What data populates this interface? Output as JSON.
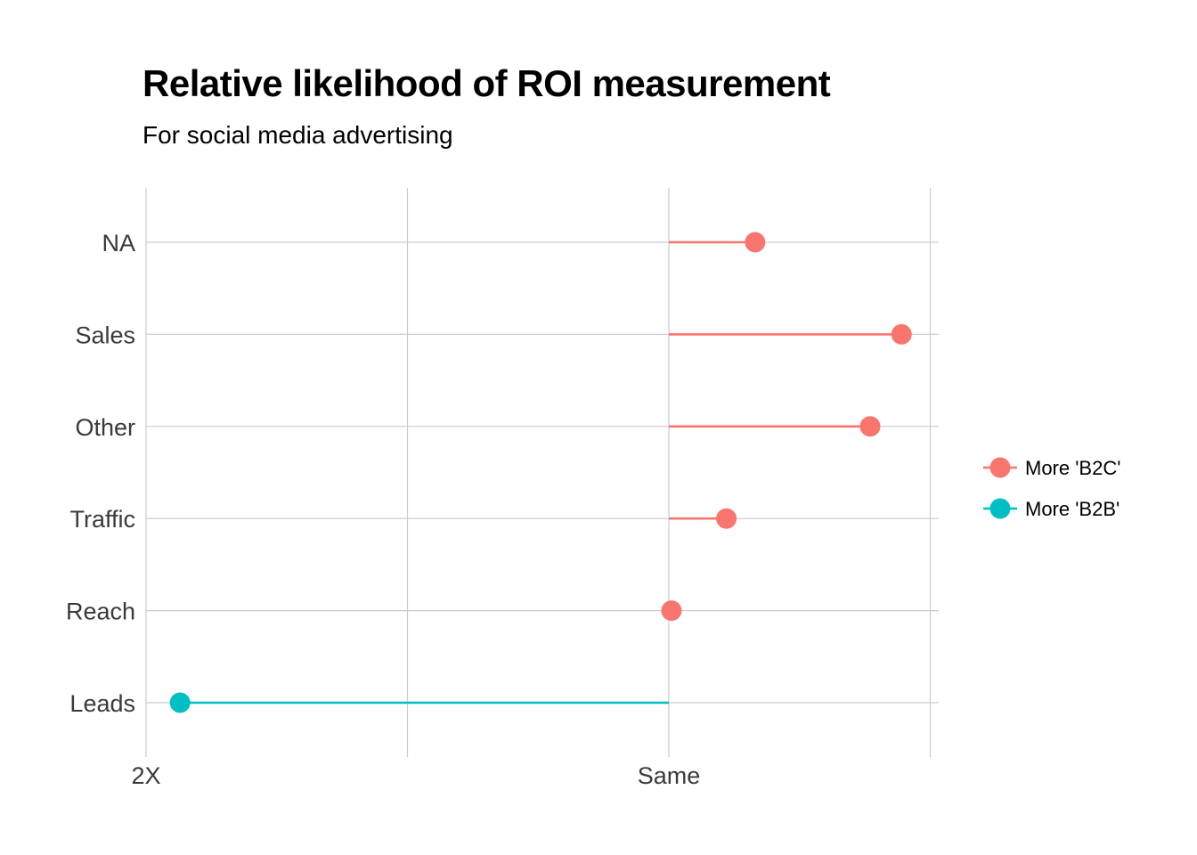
{
  "title": "Relative likelihood of ROI measurement",
  "subtitle": "For social media advertising",
  "chart_data": {
    "type": "lollipop",
    "title": "Relative likelihood of ROI measurement",
    "subtitle": "For social media advertising",
    "xlabel": "",
    "ylabel": "",
    "x_axis": {
      "xlim": [
        -2.0,
        1.0
      ],
      "ticks": [
        {
          "value": -2.0,
          "label": "2X"
        },
        {
          "value": 0.0,
          "label": "Same"
        }
      ],
      "gridlines": [
        -2.0,
        -1.0,
        0.0,
        1.0
      ]
    },
    "baseline": 0.0,
    "categories": [
      "NA",
      "Sales",
      "Other",
      "Traffic",
      "Reach",
      "Leads"
    ],
    "series": [
      {
        "name": "More 'B2C'",
        "color": "#F8766D"
      },
      {
        "name": "More 'B2B'",
        "color": "#00BFC4"
      }
    ],
    "points": [
      {
        "category": "NA",
        "value": 0.33,
        "series": "More 'B2C'"
      },
      {
        "category": "Sales",
        "value": 0.89,
        "series": "More 'B2C'"
      },
      {
        "category": "Other",
        "value": 0.77,
        "series": "More 'B2C'"
      },
      {
        "category": "Traffic",
        "value": 0.22,
        "series": "More 'B2C'"
      },
      {
        "category": "Reach",
        "value": 0.01,
        "series": "More 'B2C'"
      },
      {
        "category": "Leads",
        "value": -1.87,
        "series": "More 'B2B'"
      }
    ],
    "grid": true,
    "legend_position": "right"
  }
}
